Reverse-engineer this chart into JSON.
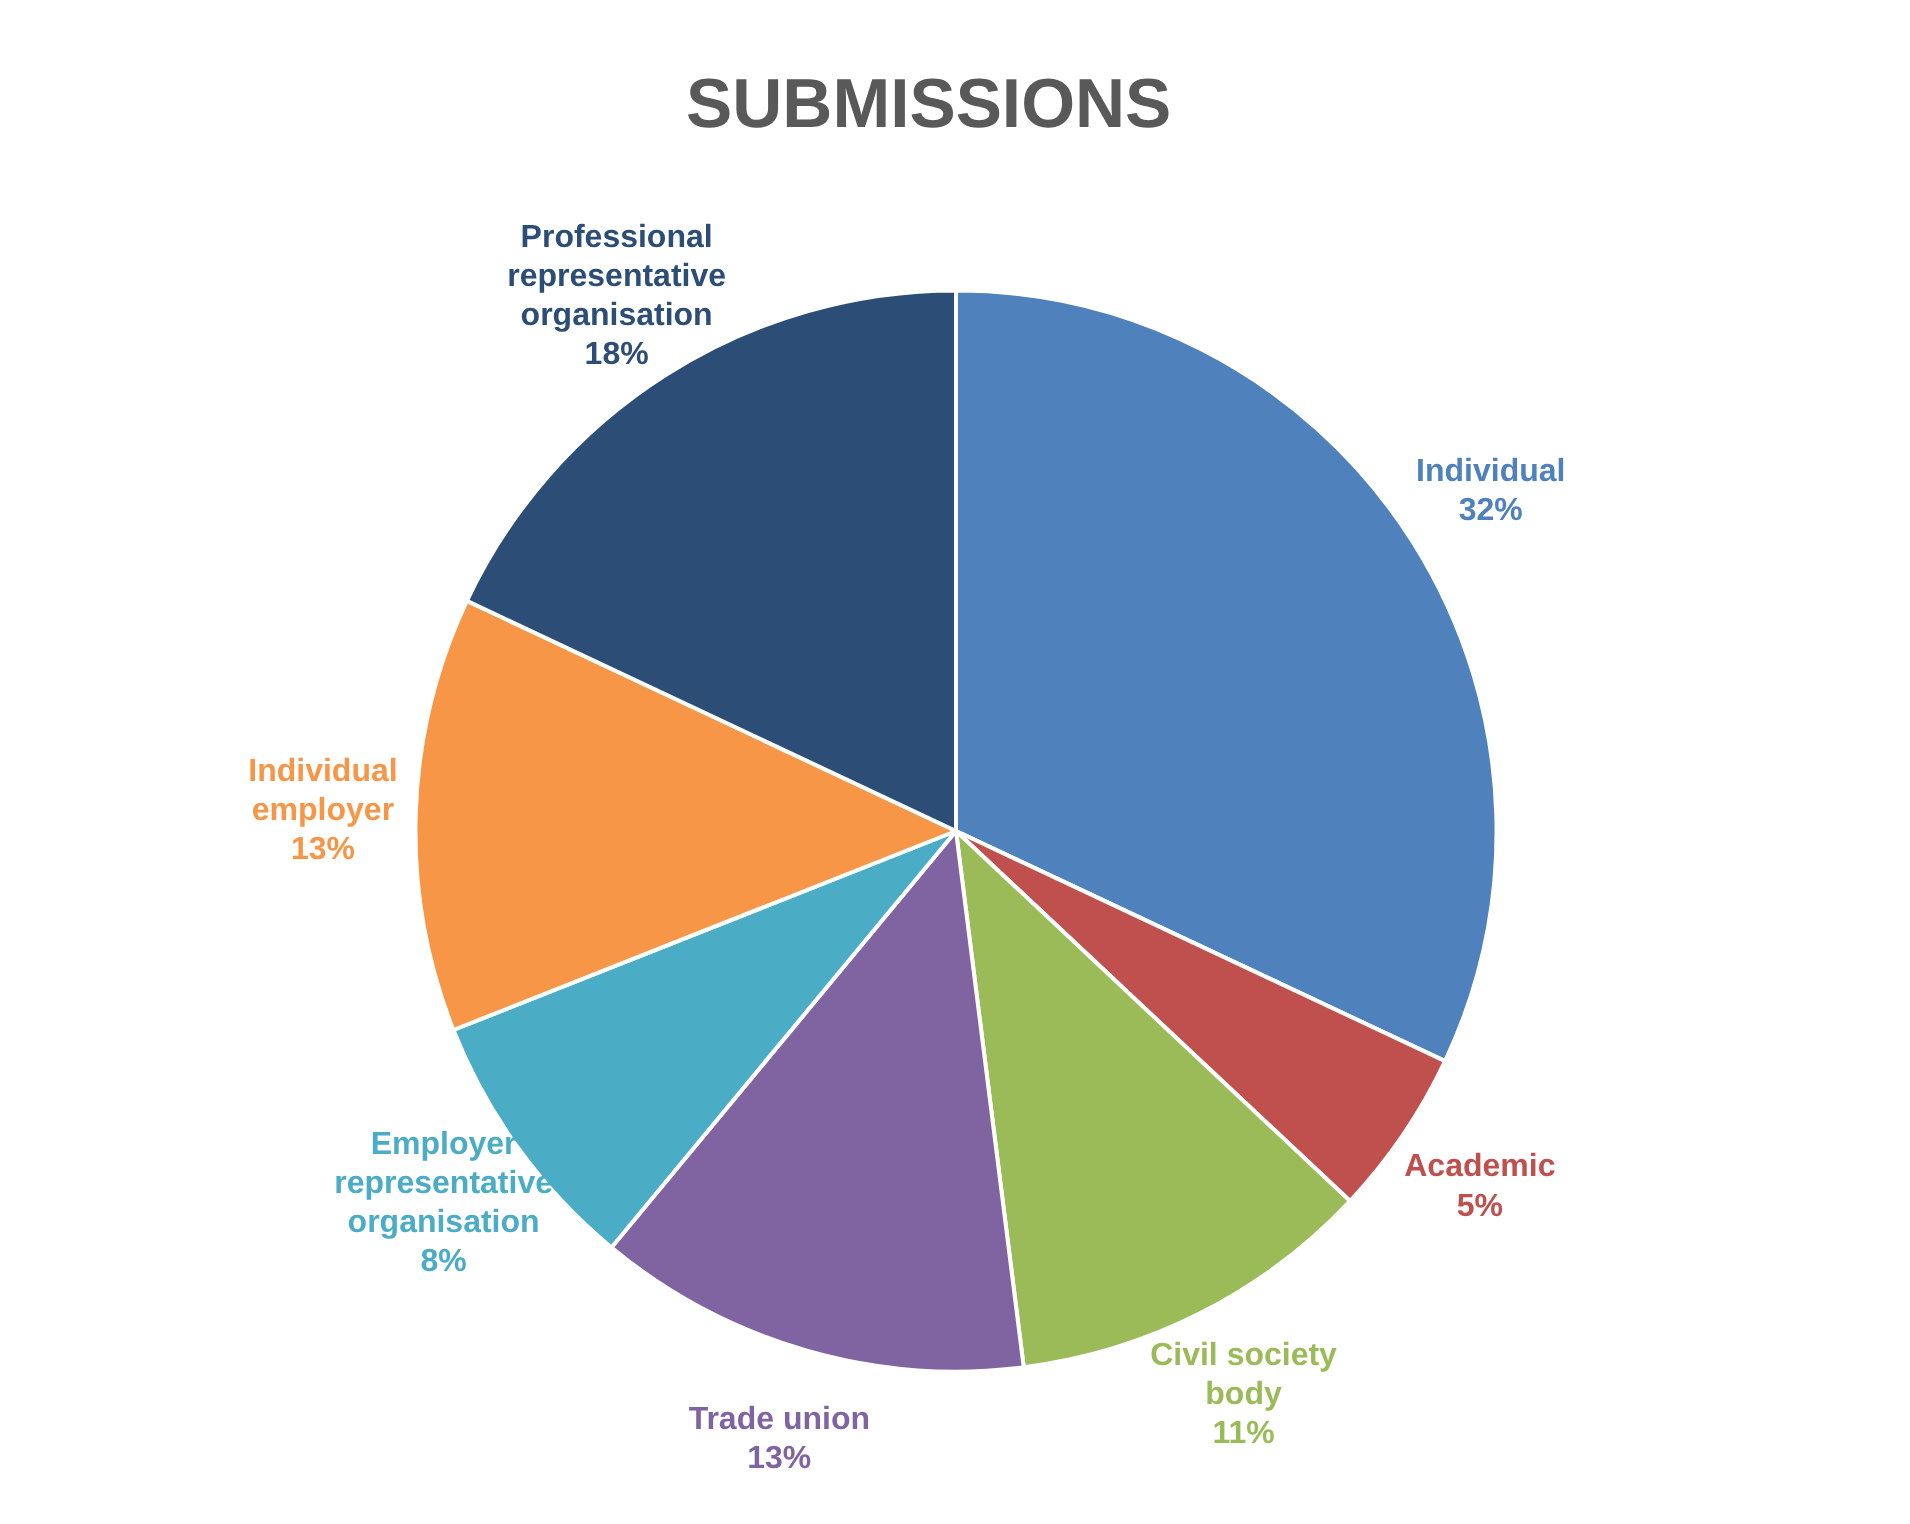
{
  "chart_data": {
    "type": "pie",
    "title": "SUBMISSIONS",
    "categories": [
      "Individual",
      "Academic",
      "Civil society body",
      "Trade union",
      "Employer representative organisation",
      "Individual employer",
      "Professional representative organisation"
    ],
    "values": [
      32,
      5,
      11,
      13,
      8,
      13,
      18
    ],
    "colors": [
      "#4f81bd",
      "#c0504d",
      "#9bbb59",
      "#8064a2",
      "#4bacc6",
      "#f79646",
      "#2c4d75"
    ],
    "value_labels": [
      "32%",
      "5%",
      "11%",
      "13%",
      "8%",
      "13%",
      "18%"
    ],
    "data_labels": true,
    "legend": false
  }
}
